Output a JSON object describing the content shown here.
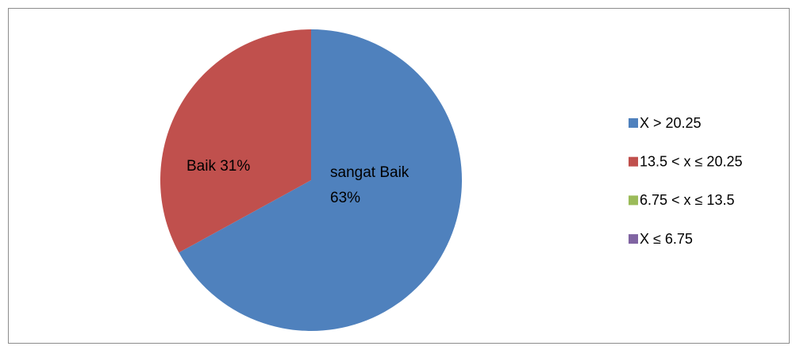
{
  "chart_data": {
    "type": "pie",
    "categories": [
      "X > 20.25",
      "13.5 < x ≤ 20.25",
      "6.75 < x ≤ 13.5",
      "X ≤ 6.75"
    ],
    "values": [
      63,
      31,
      0,
      0
    ],
    "value_labels": [
      "sangat Baik 63%",
      "Baik 31%",
      null,
      null
    ],
    "colors": [
      "#4f81bd",
      "#c0504d",
      "#9bbb59",
      "#8064a2"
    ],
    "legend": "right"
  }
}
